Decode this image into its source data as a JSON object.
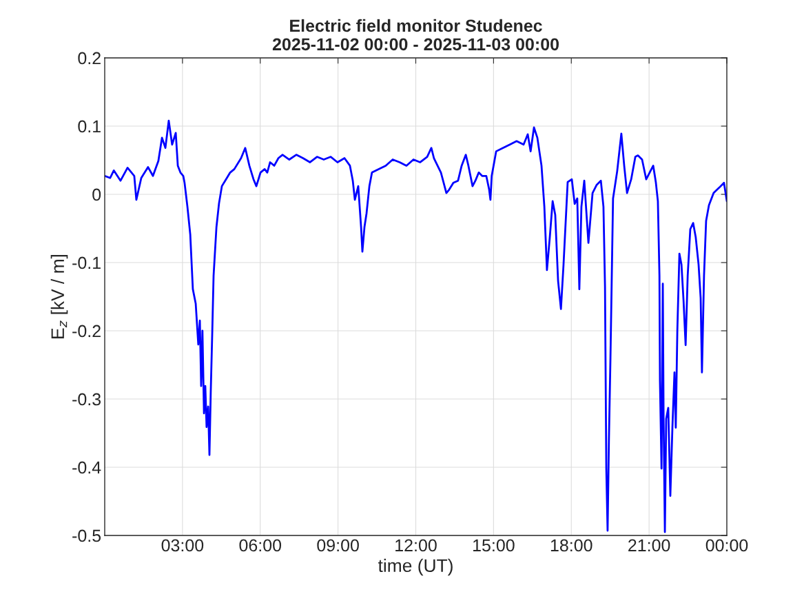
{
  "chart_data": {
    "type": "line",
    "title": "Electric field monitor Studenec\n2025-11-02 00:00 - 2025-11-03 00:00",
    "xlabel": "time (UT)",
    "ylabel": "E$_{z}$ [kV / m]",
    "xlim": [
      0,
      24
    ],
    "xticks": [
      {
        "value": 3,
        "label": "03:00"
      },
      {
        "value": 6,
        "label": "06:00"
      },
      {
        "value": 9,
        "label": "09:00"
      },
      {
        "value": 12,
        "label": "12:00"
      },
      {
        "value": 15,
        "label": "15:00"
      },
      {
        "value": 18,
        "label": "18:00"
      },
      {
        "value": 21,
        "label": "21:00"
      },
      {
        "value": 24,
        "label": "00:00"
      }
    ],
    "ylim": [
      -0.5,
      0.2
    ],
    "yticks": [
      -0.5,
      -0.4,
      -0.3,
      -0.2,
      -0.1,
      0,
      0.1,
      0.2
    ],
    "grid": true,
    "line_style": "solid",
    "marker": "none",
    "series": [
      {
        "color": "#0000ff",
        "x": [
          0,
          0.21,
          0.35,
          0.61,
          0.88,
          1.14,
          1.22,
          1.41,
          1.67,
          1.86,
          2.07,
          2.21,
          2.34,
          2.47,
          2.6,
          2.74,
          2.82,
          2.92,
          3.03,
          3.08,
          3.19,
          3.3,
          3.4,
          3.51,
          3.61,
          3.67,
          3.72,
          3.77,
          3.83,
          3.88,
          3.93,
          3.99,
          4.04,
          4.09,
          4.15,
          4.2,
          4.31,
          4.41,
          4.52,
          4.68,
          4.84,
          5.0,
          5.26,
          5.42,
          5.58,
          5.74,
          5.85,
          6.01,
          6.17,
          6.27,
          6.38,
          6.54,
          6.7,
          6.86,
          7.12,
          7.39,
          7.65,
          7.92,
          8.19,
          8.45,
          8.72,
          8.98,
          9.25,
          9.46,
          9.57,
          9.65,
          9.78,
          9.89,
          9.94,
          10.02,
          10.1,
          10.21,
          10.31,
          10.58,
          10.84,
          11.11,
          11.38,
          11.64,
          11.91,
          12.17,
          12.44,
          12.6,
          12.7,
          12.97,
          13.18,
          13.29,
          13.45,
          13.63,
          13.77,
          13.93,
          14.03,
          14.19,
          14.3,
          14.43,
          14.56,
          14.72,
          14.83,
          14.88,
          14.93,
          15.1,
          15.36,
          15.63,
          15.89,
          16.16,
          16.32,
          16.43,
          16.56,
          16.69,
          16.85,
          16.96,
          17.06,
          17.17,
          17.28,
          17.38,
          17.49,
          17.6,
          17.7,
          17.86,
          18.02,
          18.13,
          18.23,
          18.31,
          18.39,
          18.5,
          18.66,
          18.82,
          18.98,
          19.14,
          19.24,
          19.3,
          19.35,
          19.4,
          19.45,
          19.51,
          19.61,
          19.77,
          19.93,
          20.04,
          20.15,
          20.31,
          20.47,
          20.57,
          20.73,
          20.89,
          21.05,
          21.16,
          21.26,
          21.34,
          21.4,
          21.42,
          21.48,
          21.53,
          21.56,
          21.61,
          21.66,
          21.74,
          21.82,
          21.9,
          21.98,
          22.03,
          22.09,
          22.17,
          22.25,
          22.33,
          22.41,
          22.49,
          22.59,
          22.7,
          22.8,
          22.91,
          22.99,
          23.04,
          23.12,
          23.2,
          23.31,
          23.49,
          23.71,
          23.89,
          24.0
        ],
        "values": [
          0.027,
          0.024,
          0.035,
          0.02,
          0.039,
          0.027,
          -0.008,
          0.024,
          0.04,
          0.027,
          0.049,
          0.083,
          0.068,
          0.108,
          0.073,
          0.09,
          0.042,
          0.032,
          0.027,
          0.017,
          -0.018,
          -0.059,
          -0.139,
          -0.16,
          -0.22,
          -0.185,
          -0.281,
          -0.2,
          -0.321,
          -0.281,
          -0.341,
          -0.311,
          -0.382,
          -0.291,
          -0.2,
          -0.119,
          -0.048,
          -0.013,
          0.012,
          0.022,
          0.032,
          0.037,
          0.053,
          0.068,
          0.042,
          0.022,
          0.012,
          0.032,
          0.037,
          0.032,
          0.047,
          0.042,
          0.053,
          0.058,
          0.051,
          0.058,
          0.053,
          0.047,
          0.055,
          0.051,
          0.055,
          0.047,
          0.053,
          0.042,
          0.02,
          -0.008,
          0.012,
          -0.048,
          -0.084,
          -0.048,
          -0.028,
          0.012,
          0.032,
          0.037,
          0.042,
          0.051,
          0.047,
          0.042,
          0.051,
          0.047,
          0.055,
          0.068,
          0.053,
          0.032,
          0.002,
          0.007,
          0.017,
          0.02,
          0.042,
          0.058,
          0.042,
          0.012,
          0.02,
          0.032,
          0.027,
          0.027,
          0.007,
          -0.008,
          0.027,
          0.063,
          0.068,
          0.073,
          0.078,
          0.073,
          0.088,
          0.063,
          0.098,
          0.083,
          0.042,
          -0.018,
          -0.111,
          -0.063,
          -0.01,
          -0.03,
          -0.127,
          -0.168,
          -0.103,
          0.018,
          0.022,
          -0.014,
          -0.006,
          -0.139,
          -0.018,
          0.02,
          -0.071,
          0.002,
          0.014,
          0.02,
          -0.018,
          -0.135,
          -0.402,
          -0.493,
          -0.362,
          -0.24,
          -0.006,
          0.034,
          0.089,
          0.042,
          0.002,
          0.022,
          0.055,
          0.057,
          0.051,
          0.022,
          0.034,
          0.042,
          0.018,
          -0.01,
          -0.119,
          -0.273,
          -0.402,
          -0.131,
          -0.329,
          -0.495,
          -0.329,
          -0.313,
          -0.442,
          -0.342,
          -0.261,
          -0.342,
          -0.2,
          -0.087,
          -0.103,
          -0.156,
          -0.221,
          -0.119,
          -0.051,
          -0.042,
          -0.063,
          -0.103,
          -0.152,
          -0.261,
          -0.119,
          -0.039,
          -0.016,
          0.002,
          0.01,
          0.017,
          -0.01
        ]
      }
    ]
  }
}
